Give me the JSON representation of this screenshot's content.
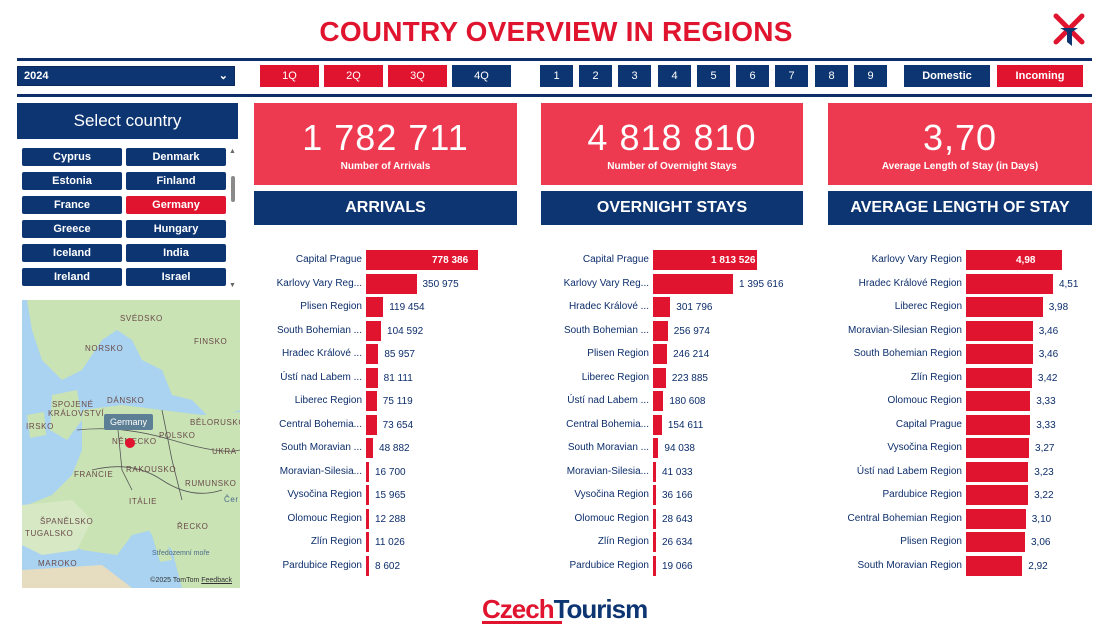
{
  "title": "COUNTRY OVERVIEW IN REGIONS",
  "year": "2024",
  "quarters": [
    "1Q",
    "2Q",
    "3Q",
    "4Q"
  ],
  "months": [
    "1",
    "2",
    "3",
    "4",
    "5",
    "6",
    "7",
    "8",
    "9"
  ],
  "toggle": {
    "domestic": "Domestic",
    "incoming": "Incoming"
  },
  "select_country": {
    "title": "Select country",
    "countries": [
      "Cyprus",
      "Denmark",
      "Estonia",
      "Finland",
      "France",
      "Germany",
      "Greece",
      "Hungary",
      "Iceland",
      "India",
      "Ireland",
      "Israel"
    ],
    "selected": "Germany"
  },
  "map": {
    "tooltip": "Germany",
    "credit": "©2025 TomTom",
    "feedback": "Feedback",
    "labels": [
      "SVÉDSKO",
      "FINSKO",
      "NORSKO",
      "DÁNSKO",
      "SPOJENÉ",
      "KRÁLOVSTVÍ",
      "IRSKO",
      "NĚMECKO",
      "POLSKO",
      "BĚLORUSKO",
      "UKRA",
      "FRANCIE",
      "RAKOUSKO",
      "RUMUNSKO",
      "ITÁLIE",
      "ŠPANĚLSKO",
      "TUGALSKO",
      "ŘECKO",
      "MAROKO",
      "Středozemní moře",
      "Čer"
    ]
  },
  "kpis": [
    {
      "value": "1 782 711",
      "label": "Number of Arrivals"
    },
    {
      "value": "4 818 810",
      "label": "Number of Overnight Stays"
    },
    {
      "value": "3,70",
      "label": "Average Length of Stay (in Days)"
    }
  ],
  "sections": [
    "ARRIVALS",
    "OVERNIGHT STAYS",
    "AVERAGE LENGTH OF STAY"
  ],
  "chart_data": [
    {
      "type": "bar",
      "title": "ARRIVALS",
      "categories": [
        "Capital Prague",
        "Karlovy Vary Reg...",
        "Plisen Region",
        "South Bohemian ...",
        "Hradec Králové ...",
        "Ústí nad Labem ...",
        "Liberec Region",
        "Central Bohemia...",
        "South Moravian ...",
        "Moravian-Silesia...",
        "Vysočina Region",
        "Olomouc Region",
        "Zlín Region",
        "Pardubice Region"
      ],
      "values": [
        778386,
        350975,
        119454,
        104592,
        85957,
        81111,
        75119,
        73654,
        48882,
        16700,
        15965,
        12288,
        11026,
        8602
      ],
      "labels": [
        "778 386",
        "350 975",
        "119 454",
        "104 592",
        "85 957",
        "81 111",
        "75 119",
        "73 654",
        "48 882",
        "16 700",
        "15 965",
        "12 288",
        "11 026",
        "8 602"
      ]
    },
    {
      "type": "bar",
      "title": "OVERNIGHT STAYS",
      "categories": [
        "Capital Prague",
        "Karlovy Vary Reg...",
        "Hradec Králové ...",
        "South Bohemian ...",
        "Plisen Region",
        "Liberec Region",
        "Ústí nad Labem ...",
        "Central Bohemia...",
        "South Moravian ...",
        "Moravian-Silesia...",
        "Vysočina Region",
        "Olomouc Region",
        "Zlín Region",
        "Pardubice Region"
      ],
      "values": [
        1813526,
        1395616,
        301796,
        256974,
        246214,
        223885,
        180608,
        154611,
        94038,
        41033,
        36166,
        28643,
        26634,
        19066
      ],
      "labels": [
        "1 813 526",
        "1 395 616",
        "301 796",
        "256 974",
        "246 214",
        "223 885",
        "180 608",
        "154 611",
        "94 038",
        "41 033",
        "36 166",
        "28 643",
        "26 634",
        "19 066"
      ]
    },
    {
      "type": "bar",
      "title": "AVERAGE LENGTH OF STAY",
      "categories": [
        "Karlovy Vary Region",
        "Hradec Králové Region",
        "Liberec Region",
        "Moravian-Silesian Region",
        "South Bohemian Region",
        "Zlín Region",
        "Olomouc Region",
        "Capital Prague",
        "Vysočina Region",
        "Ústí nad Labem Region",
        "Pardubice Region",
        "Central Bohemian Region",
        "Plisen Region",
        "South Moravian Region"
      ],
      "values": [
        4.98,
        4.51,
        3.98,
        3.46,
        3.46,
        3.42,
        3.33,
        3.33,
        3.27,
        3.23,
        3.22,
        3.1,
        3.06,
        2.92
      ],
      "labels": [
        "4,98",
        "4,51",
        "3,98",
        "3,46",
        "3,46",
        "3,42",
        "3,33",
        "3,33",
        "3,27",
        "3,23",
        "3,22",
        "3,10",
        "3,06",
        "2,92"
      ]
    }
  ],
  "brand": {
    "part1": "Czech",
    "part2": "Tourism"
  },
  "colors": {
    "navy": "#0d3572",
    "red": "#e0142e",
    "kpi": "#ee3a50"
  }
}
